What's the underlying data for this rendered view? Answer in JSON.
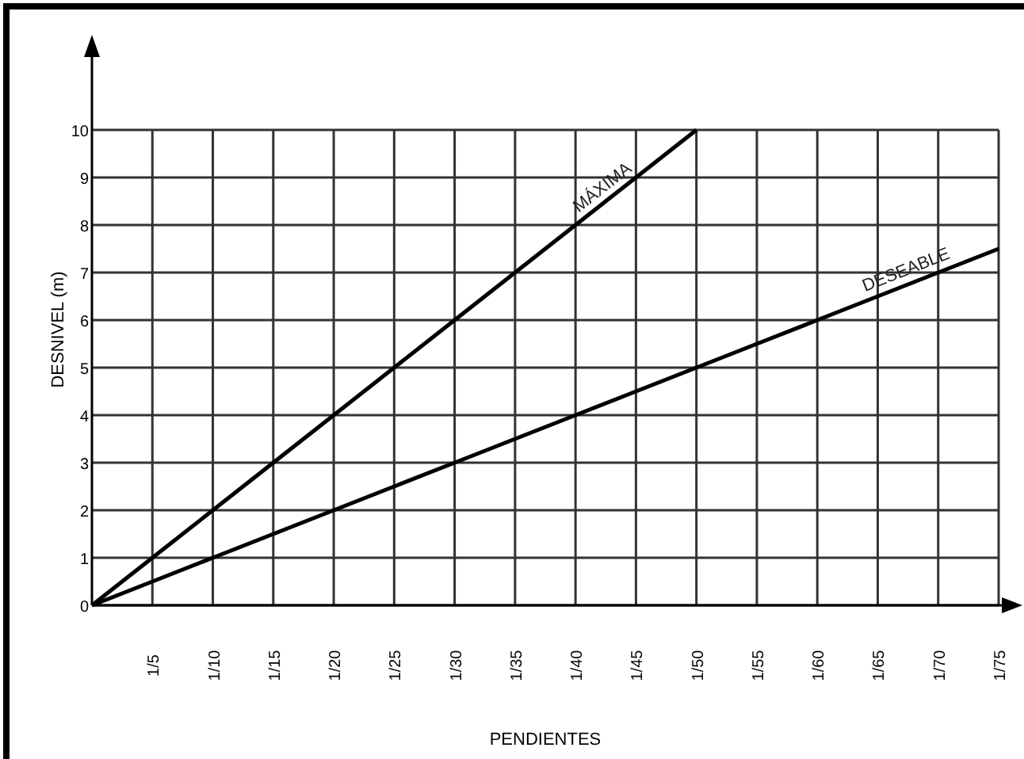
{
  "chart_data": {
    "type": "line",
    "xlabel": "PENDIENTES",
    "ylabel": "DESNIVEL (m)",
    "categories": [
      null,
      "1/5",
      "1/10",
      "1/15",
      "1/20",
      "1/25",
      "1/30",
      "1/35",
      "1/40",
      "1/45",
      "1/50",
      "1/55",
      "1/60",
      "1/65",
      "1/70",
      "1/75"
    ],
    "series": [
      {
        "name": "MÁXIMA",
        "color": "#000000",
        "values": [
          0,
          1,
          2,
          3,
          4,
          5,
          6,
          7,
          8,
          9,
          10,
          null,
          null,
          null,
          null,
          null
        ]
      },
      {
        "name": "DESEABLE",
        "color": "#000000",
        "values": [
          0,
          0.5,
          1,
          1.5,
          2,
          2.5,
          3,
          3.5,
          4,
          4.5,
          5,
          5.5,
          6,
          6.5,
          7,
          7.5
        ]
      }
    ],
    "ylim": [
      0,
      11.6
    ],
    "yticks": [
      0,
      1,
      2,
      3,
      4,
      5,
      6,
      7,
      8,
      9,
      10
    ],
    "grid": true,
    "marker": "none",
    "line_style": "solid"
  }
}
